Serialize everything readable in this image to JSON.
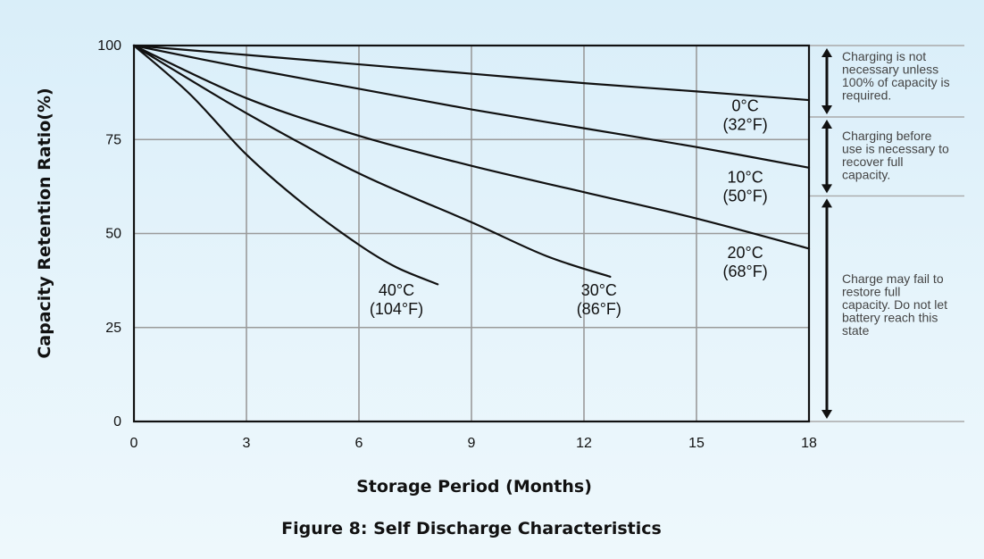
{
  "chart_data": {
    "type": "line",
    "xlabel": "Storage Period (Months)",
    "ylabel": "Capacity Retention Ratio(%)",
    "caption": "Figure 8: Self Discharge Characteristics",
    "xlim": [
      0,
      18
    ],
    "ylim": [
      0,
      100
    ],
    "xticks": [
      "0",
      "3",
      "6",
      "9",
      "12",
      "15",
      "18"
    ],
    "yticks": [
      "0",
      "25",
      "50",
      "75",
      "100"
    ],
    "grid": true,
    "series": [
      {
        "name": "0°C (32°F)",
        "label_line1": "0°C",
        "label_line2": "(32°F)",
        "points": [
          [
            0,
            100
          ],
          [
            3,
            97.5
          ],
          [
            6,
            95
          ],
          [
            9,
            92.5
          ],
          [
            12,
            90
          ],
          [
            15,
            87.8
          ],
          [
            18,
            85.5
          ]
        ]
      },
      {
        "name": "10°C (50°F)",
        "label_line1": "10°C",
        "label_line2": "(50°F)",
        "points": [
          [
            0,
            100
          ],
          [
            3,
            94
          ],
          [
            6,
            88.5
          ],
          [
            9,
            83
          ],
          [
            12,
            78
          ],
          [
            15,
            73
          ],
          [
            18,
            67.5
          ]
        ]
      },
      {
        "name": "20°C (68°F)",
        "label_line1": "20°C",
        "label_line2": "(68°F)",
        "points": [
          [
            0,
            100
          ],
          [
            3,
            86
          ],
          [
            6,
            76
          ],
          [
            9,
            68
          ],
          [
            12,
            61
          ],
          [
            15,
            54
          ],
          [
            18,
            46
          ]
        ]
      },
      {
        "name": "30°C (86°F)",
        "label_line1": "30°C",
        "label_line2": "(86°F)",
        "points": [
          [
            0,
            100
          ],
          [
            3,
            82
          ],
          [
            6,
            66
          ],
          [
            9,
            53
          ],
          [
            11,
            44
          ],
          [
            12.7,
            38.5
          ]
        ]
      },
      {
        "name": "40°C (104°F)",
        "label_line1": "40°C",
        "label_line2": "(104°F)",
        "points": [
          [
            0,
            100
          ],
          [
            1.5,
            87
          ],
          [
            3,
            71
          ],
          [
            4.5,
            58
          ],
          [
            6,
            47
          ],
          [
            7,
            41
          ],
          [
            8.1,
            36.5
          ]
        ]
      }
    ],
    "zones": [
      {
        "from": 81,
        "to": 100,
        "lines": [
          "Charging is not",
          "necessary unless",
          "100% of capacity is",
          "required."
        ]
      },
      {
        "from": 60,
        "to": 81,
        "lines": [
          "Charging before",
          "use is necessary to",
          "recover full",
          "capacity."
        ]
      },
      {
        "from": 0,
        "to": 60,
        "lines": [
          "Charge may fail to",
          "restore full",
          "capacity. Do not let",
          "battery reach this",
          "state"
        ]
      }
    ]
  }
}
